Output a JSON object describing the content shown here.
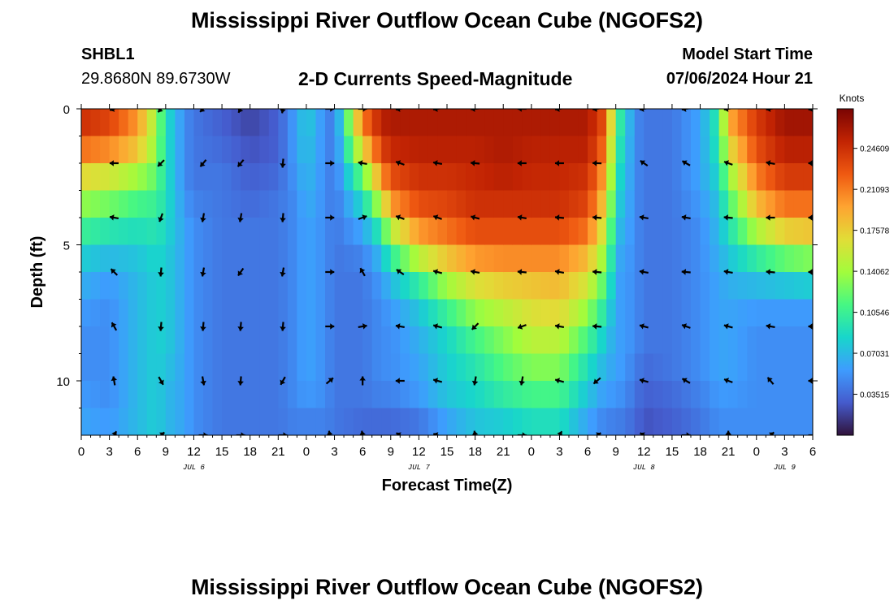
{
  "page": {
    "title": "Mississippi River Outflow Ocean Cube (NGOFS2)",
    "station_id": "SHBL1",
    "station_coords": "29.8680N  89.6730W",
    "subtitle": "2-D Currents Speed-Magnitude",
    "model_start_label": "Model Start Time",
    "model_start_value": "07/06/2024 Hour 21",
    "second_title": "Mississippi River Outflow Ocean Cube (NGOFS2)"
  },
  "chart_data": {
    "type": "heatmap",
    "title": "2-D Currents Speed-Magnitude",
    "xlabel": "Forecast Time(Z)",
    "ylabel": "Depth (ft)",
    "colorbar_label": "Knots",
    "colorbar_ticks": [
      "0.24609",
      "0.21093",
      "0.17578",
      "0.14062",
      "0.10546",
      "0.07031",
      "0.03515"
    ],
    "colorbar_tick_values": [
      0.24609,
      0.21093,
      0.17578,
      0.14062,
      0.10546,
      0.07031,
      0.03515
    ],
    "color_range": [
      0,
      0.28
    ],
    "x_range": [
      0,
      78
    ],
    "y_range": [
      0,
      12
    ],
    "x_tick_labels": [
      "0",
      "3",
      "6",
      "9",
      "12",
      "15",
      "18",
      "21",
      "0",
      "3",
      "6",
      "9",
      "12",
      "15",
      "18",
      "21",
      "0",
      "3",
      "6",
      "9",
      "12",
      "15",
      "18",
      "21",
      "0",
      "3",
      "6"
    ],
    "y_tick_labels": [
      "0",
      "5",
      "10"
    ],
    "y_tick_values": [
      0,
      5,
      10
    ],
    "day_labels": [
      {
        "label": "JUL 6",
        "hour": 12
      },
      {
        "label": "JUL 7",
        "hour": 36
      },
      {
        "label": "JUL 8",
        "hour": 60
      },
      {
        "label": "JUL 9",
        "hour": 75
      }
    ],
    "depths": [
      0,
      1,
      2,
      3,
      4,
      5,
      6,
      7,
      8,
      9,
      10,
      11,
      12
    ],
    "speed_profile_hours": [
      0,
      3,
      6,
      8,
      9,
      11,
      12,
      15,
      18,
      21,
      23,
      24,
      26,
      27,
      30,
      32,
      33,
      36,
      39,
      42,
      45,
      48,
      51,
      54,
      56,
      57,
      59,
      60,
      63,
      66,
      68,
      69,
      72,
      75,
      78
    ],
    "speed_profiles": [
      [
        0.25,
        0.24,
        0.19,
        0.15,
        0.12,
        0.09,
        0.07,
        0.06,
        0.05,
        0.05,
        0.05,
        0.06,
        0.06
      ],
      [
        0.24,
        0.23,
        0.18,
        0.14,
        0.11,
        0.08,
        0.06,
        0.05,
        0.05,
        0.05,
        0.05,
        0.05,
        0.06
      ],
      [
        0.2,
        0.2,
        0.16,
        0.12,
        0.1,
        0.08,
        0.07,
        0.07,
        0.07,
        0.07,
        0.07,
        0.07,
        0.07
      ],
      [
        0.14,
        0.14,
        0.13,
        0.11,
        0.1,
        0.09,
        0.08,
        0.08,
        0.08,
        0.08,
        0.08,
        0.08,
        0.08
      ],
      [
        0.09,
        0.09,
        0.09,
        0.09,
        0.09,
        0.08,
        0.08,
        0.08,
        0.08,
        0.08,
        0.07,
        0.07,
        0.07
      ],
      [
        0.05,
        0.05,
        0.05,
        0.05,
        0.06,
        0.06,
        0.06,
        0.06,
        0.06,
        0.06,
        0.06,
        0.06,
        0.06
      ],
      [
        0.04,
        0.04,
        0.04,
        0.04,
        0.05,
        0.05,
        0.05,
        0.05,
        0.05,
        0.05,
        0.05,
        0.05,
        0.05
      ],
      [
        0.03,
        0.03,
        0.04,
        0.04,
        0.04,
        0.04,
        0.04,
        0.04,
        0.04,
        0.04,
        0.04,
        0.04,
        0.04
      ],
      [
        0.02,
        0.02,
        0.03,
        0.03,
        0.04,
        0.04,
        0.04,
        0.04,
        0.04,
        0.04,
        0.04,
        0.04,
        0.04
      ],
      [
        0.03,
        0.03,
        0.03,
        0.04,
        0.04,
        0.04,
        0.04,
        0.04,
        0.04,
        0.04,
        0.04,
        0.04,
        0.04
      ],
      [
        0.06,
        0.06,
        0.06,
        0.05,
        0.05,
        0.05,
        0.05,
        0.05,
        0.05,
        0.05,
        0.05,
        0.05,
        0.04
      ],
      [
        0.08,
        0.08,
        0.07,
        0.07,
        0.06,
        0.06,
        0.06,
        0.06,
        0.06,
        0.06,
        0.06,
        0.05,
        0.04
      ],
      [
        0.05,
        0.05,
        0.05,
        0.05,
        0.05,
        0.05,
        0.05,
        0.05,
        0.05,
        0.05,
        0.05,
        0.05,
        0.04
      ],
      [
        0.04,
        0.04,
        0.04,
        0.04,
        0.04,
        0.04,
        0.04,
        0.04,
        0.04,
        0.04,
        0.04,
        0.04,
        0.04
      ],
      [
        0.22,
        0.2,
        0.14,
        0.1,
        0.07,
        0.05,
        0.04,
        0.04,
        0.04,
        0.04,
        0.04,
        0.04,
        0.03
      ],
      [
        0.26,
        0.25,
        0.22,
        0.18,
        0.12,
        0.08,
        0.06,
        0.05,
        0.05,
        0.05,
        0.05,
        0.04,
        0.03
      ],
      [
        0.26,
        0.26,
        0.24,
        0.22,
        0.18,
        0.12,
        0.08,
        0.06,
        0.05,
        0.05,
        0.05,
        0.04,
        0.03
      ],
      [
        0.26,
        0.26,
        0.25,
        0.24,
        0.22,
        0.18,
        0.12,
        0.08,
        0.07,
        0.06,
        0.06,
        0.05,
        0.03
      ],
      [
        0.26,
        0.26,
        0.25,
        0.24,
        0.23,
        0.2,
        0.16,
        0.12,
        0.09,
        0.08,
        0.08,
        0.07,
        0.05
      ],
      [
        0.26,
        0.26,
        0.25,
        0.25,
        0.24,
        0.22,
        0.18,
        0.15,
        0.12,
        0.1,
        0.09,
        0.08,
        0.07
      ],
      [
        0.26,
        0.26,
        0.26,
        0.25,
        0.24,
        0.22,
        0.19,
        0.16,
        0.14,
        0.12,
        0.11,
        0.09,
        0.07
      ],
      [
        0.26,
        0.26,
        0.25,
        0.25,
        0.24,
        0.22,
        0.19,
        0.17,
        0.16,
        0.14,
        0.12,
        0.1,
        0.08
      ],
      [
        0.26,
        0.26,
        0.25,
        0.25,
        0.24,
        0.22,
        0.19,
        0.18,
        0.16,
        0.14,
        0.12,
        0.1,
        0.08
      ],
      [
        0.26,
        0.26,
        0.25,
        0.24,
        0.23,
        0.2,
        0.17,
        0.15,
        0.12,
        0.1,
        0.08,
        0.07,
        0.05
      ],
      [
        0.23,
        0.22,
        0.2,
        0.18,
        0.16,
        0.14,
        0.12,
        0.1,
        0.08,
        0.07,
        0.06,
        0.05,
        0.04
      ],
      [
        0.12,
        0.11,
        0.1,
        0.09,
        0.08,
        0.07,
        0.06,
        0.06,
        0.06,
        0.06,
        0.06,
        0.05,
        0.04
      ],
      [
        0.05,
        0.05,
        0.05,
        0.05,
        0.05,
        0.05,
        0.05,
        0.05,
        0.05,
        0.05,
        0.04,
        0.04,
        0.03
      ],
      [
        0.04,
        0.04,
        0.04,
        0.04,
        0.04,
        0.04,
        0.04,
        0.04,
        0.04,
        0.04,
        0.03,
        0.03,
        0.02
      ],
      [
        0.04,
        0.04,
        0.04,
        0.04,
        0.04,
        0.04,
        0.04,
        0.04,
        0.04,
        0.04,
        0.04,
        0.03,
        0.03
      ],
      [
        0.06,
        0.06,
        0.06,
        0.06,
        0.05,
        0.05,
        0.05,
        0.05,
        0.05,
        0.05,
        0.05,
        0.04,
        0.04
      ],
      [
        0.1,
        0.1,
        0.09,
        0.08,
        0.07,
        0.07,
        0.06,
        0.06,
        0.06,
        0.06,
        0.06,
        0.05,
        0.05
      ],
      [
        0.2,
        0.18,
        0.15,
        0.12,
        0.1,
        0.08,
        0.07,
        0.06,
        0.06,
        0.06,
        0.06,
        0.05,
        0.05
      ],
      [
        0.24,
        0.24,
        0.22,
        0.2,
        0.17,
        0.12,
        0.08,
        0.06,
        0.05,
        0.05,
        0.05,
        0.05,
        0.05
      ],
      [
        0.27,
        0.26,
        0.25,
        0.23,
        0.2,
        0.15,
        0.09,
        0.06,
        0.05,
        0.05,
        0.05,
        0.05,
        0.05
      ],
      [
        0.27,
        0.26,
        0.25,
        0.23,
        0.2,
        0.16,
        0.1,
        0.06,
        0.05,
        0.05,
        0.05,
        0.05,
        0.05
      ]
    ],
    "vector_hours": [
      3.5,
      8.5,
      13,
      17,
      21.5,
      26.5,
      30,
      34,
      38,
      42,
      47,
      51,
      55,
      60,
      64.5,
      69,
      73.5,
      78
    ],
    "vector_depths": [
      0,
      2,
      4,
      6,
      8,
      10,
      12
    ],
    "vector_angles_deg": [
      [
        -160,
        -130,
        -135,
        -120,
        -100,
        0,
        0,
        -170,
        -170,
        -175,
        -180,
        -170,
        -170,
        -170,
        -170,
        -170,
        -170,
        -170
      ],
      [
        180,
        -135,
        -130,
        -130,
        -95,
        0,
        170,
        160,
        170,
        175,
        180,
        180,
        178,
        145,
        150,
        160,
        170,
        180
      ],
      [
        170,
        -110,
        -100,
        -100,
        -95,
        0,
        20,
        160,
        160,
        165,
        170,
        175,
        175,
        170,
        170,
        175,
        180,
        180
      ],
      [
        135,
        -95,
        -100,
        -125,
        -100,
        0,
        120,
        145,
        165,
        170,
        175,
        170,
        175,
        170,
        175,
        170,
        175,
        180
      ],
      [
        120,
        -95,
        -95,
        -95,
        -95,
        0,
        10,
        170,
        165,
        -135,
        -160,
        170,
        175,
        165,
        160,
        165,
        170,
        180
      ],
      [
        100,
        -60,
        -80,
        -95,
        -120,
        40,
        90,
        180,
        165,
        -100,
        -100,
        165,
        -140,
        165,
        150,
        160,
        130,
        180
      ],
      [
        60,
        40,
        0,
        0,
        0,
        100,
        100,
        150,
        160,
        100,
        0,
        60,
        30,
        150,
        0,
        90,
        40,
        0
      ]
    ]
  }
}
